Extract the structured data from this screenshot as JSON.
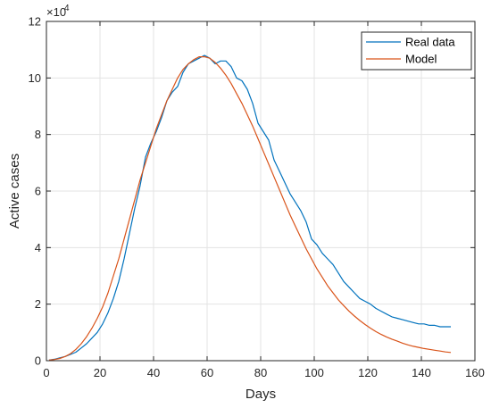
{
  "chart_data": {
    "type": "line",
    "xlabel": "Days",
    "ylabel": "Active cases",
    "xlim": [
      0,
      160
    ],
    "ylim": [
      0,
      12
    ],
    "y_multiplier": "×10",
    "y_multiplier_exp": "4",
    "grid": true,
    "legend_position": "top-right",
    "xticks": [
      "0",
      "20",
      "40",
      "60",
      "80",
      "100",
      "120",
      "140",
      "160"
    ],
    "yticks": [
      "0",
      "2",
      "4",
      "6",
      "8",
      "10",
      "12"
    ],
    "series": [
      {
        "name": "Real data",
        "color": "#0072BD",
        "x": [
          1,
          3,
          5,
          7,
          9,
          11,
          13,
          15,
          17,
          19,
          21,
          23,
          25,
          27,
          29,
          31,
          33,
          35,
          37,
          39,
          41,
          43,
          45,
          47,
          49,
          51,
          53,
          55,
          57,
          59,
          61,
          63,
          65,
          67,
          69,
          71,
          73,
          75,
          77,
          79,
          81,
          83,
          85,
          87,
          89,
          91,
          93,
          95,
          97,
          99,
          101,
          103,
          105,
          107,
          109,
          111,
          113,
          115,
          117,
          119,
          121,
          123,
          125,
          127,
          129,
          131,
          133,
          135,
          137,
          139,
          141,
          143,
          145,
          147,
          149,
          151
        ],
        "y": [
          0.02,
          0.05,
          0.1,
          0.15,
          0.22,
          0.3,
          0.45,
          0.6,
          0.8,
          1.0,
          1.3,
          1.7,
          2.2,
          2.8,
          3.6,
          4.5,
          5.4,
          6.2,
          7.2,
          7.7,
          8.1,
          8.6,
          9.2,
          9.5,
          9.7,
          10.2,
          10.5,
          10.6,
          10.7,
          10.8,
          10.7,
          10.5,
          10.6,
          10.6,
          10.4,
          10.0,
          9.9,
          9.6,
          9.1,
          8.4,
          8.1,
          7.8,
          7.1,
          6.7,
          6.3,
          5.9,
          5.6,
          5.3,
          4.9,
          4.3,
          4.1,
          3.8,
          3.6,
          3.4,
          3.1,
          2.8,
          2.6,
          2.4,
          2.2,
          2.1,
          2.0,
          1.85,
          1.75,
          1.65,
          1.55,
          1.5,
          1.45,
          1.4,
          1.35,
          1.3,
          1.3,
          1.25,
          1.25,
          1.2,
          1.2,
          1.2
        ]
      },
      {
        "name": "Model",
        "color": "#D95319",
        "x": [
          1,
          3,
          5,
          7,
          9,
          11,
          13,
          15,
          17,
          19,
          21,
          23,
          25,
          27,
          29,
          31,
          33,
          35,
          37,
          39,
          41,
          43,
          45,
          47,
          49,
          51,
          53,
          55,
          57,
          59,
          61,
          63,
          65,
          67,
          69,
          71,
          73,
          75,
          77,
          79,
          81,
          83,
          85,
          87,
          89,
          91,
          93,
          95,
          97,
          99,
          101,
          103,
          105,
          107,
          109,
          111,
          113,
          115,
          117,
          119,
          121,
          123,
          125,
          127,
          129,
          131,
          133,
          135,
          137,
          139,
          141,
          143,
          145,
          147,
          149,
          151
        ],
        "y": [
          0.02,
          0.04,
          0.08,
          0.15,
          0.25,
          0.4,
          0.6,
          0.85,
          1.15,
          1.5,
          1.9,
          2.4,
          3.0,
          3.6,
          4.3,
          5.0,
          5.7,
          6.4,
          7.0,
          7.6,
          8.2,
          8.7,
          9.2,
          9.6,
          10.0,
          10.3,
          10.5,
          10.65,
          10.75,
          10.75,
          10.7,
          10.55,
          10.35,
          10.1,
          9.8,
          9.45,
          9.1,
          8.7,
          8.3,
          7.85,
          7.4,
          6.95,
          6.5,
          6.05,
          5.6,
          5.15,
          4.75,
          4.35,
          3.95,
          3.6,
          3.25,
          2.95,
          2.65,
          2.4,
          2.15,
          1.95,
          1.75,
          1.58,
          1.42,
          1.28,
          1.15,
          1.03,
          0.93,
          0.84,
          0.76,
          0.69,
          0.62,
          0.56,
          0.51,
          0.47,
          0.43,
          0.4,
          0.37,
          0.34,
          0.31,
          0.29
        ]
      }
    ]
  }
}
